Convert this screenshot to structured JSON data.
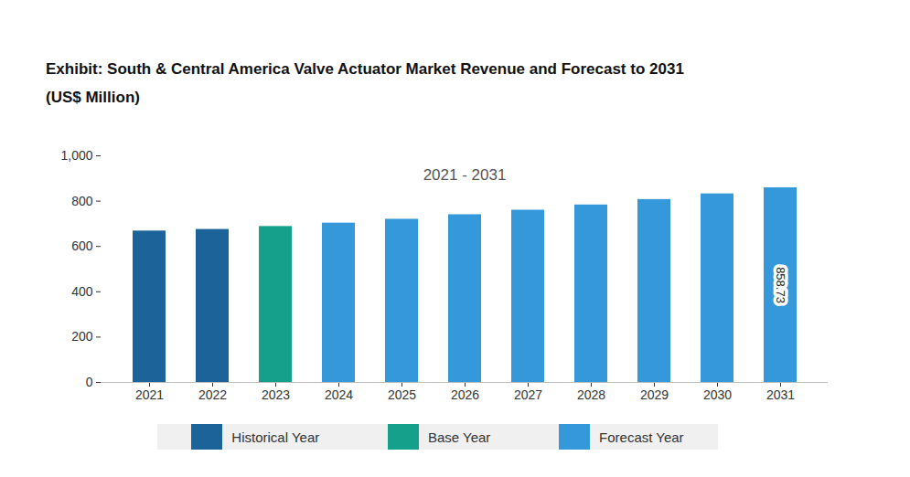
{
  "chart_data": {
    "type": "bar",
    "title": "Exhibit: South & Central America Valve Actuator Market Revenue and Forecast to 2031",
    "subtitle": "(US$ Million)",
    "annotation": "2021 - 2031",
    "categories": [
      "2021",
      "2022",
      "2023",
      "2024",
      "2025",
      "2026",
      "2027",
      "2028",
      "2029",
      "2030",
      "2031"
    ],
    "series": [
      {
        "name": "Historical Year",
        "color": "#1b6399",
        "values": [
          668,
          675,
          null,
          null,
          null,
          null,
          null,
          null,
          null,
          null,
          null
        ]
      },
      {
        "name": "Base Year",
        "color": "#14a08a",
        "values": [
          null,
          null,
          688,
          null,
          null,
          null,
          null,
          null,
          null,
          null,
          null
        ]
      },
      {
        "name": "Forecast Year",
        "color": "#3498db",
        "values": [
          null,
          null,
          null,
          703,
          720,
          740,
          760,
          783,
          807,
          832,
          858.73
        ],
        "value_labels": [
          null,
          null,
          null,
          null,
          null,
          null,
          null,
          null,
          null,
          null,
          "858.73"
        ]
      }
    ],
    "ylim": [
      0,
      1000
    ],
    "yticks": [
      0,
      200,
      400,
      600,
      800,
      {
        "value": 1000,
        "label": "1,000"
      }
    ],
    "grid": false,
    "legend": "bottom"
  }
}
